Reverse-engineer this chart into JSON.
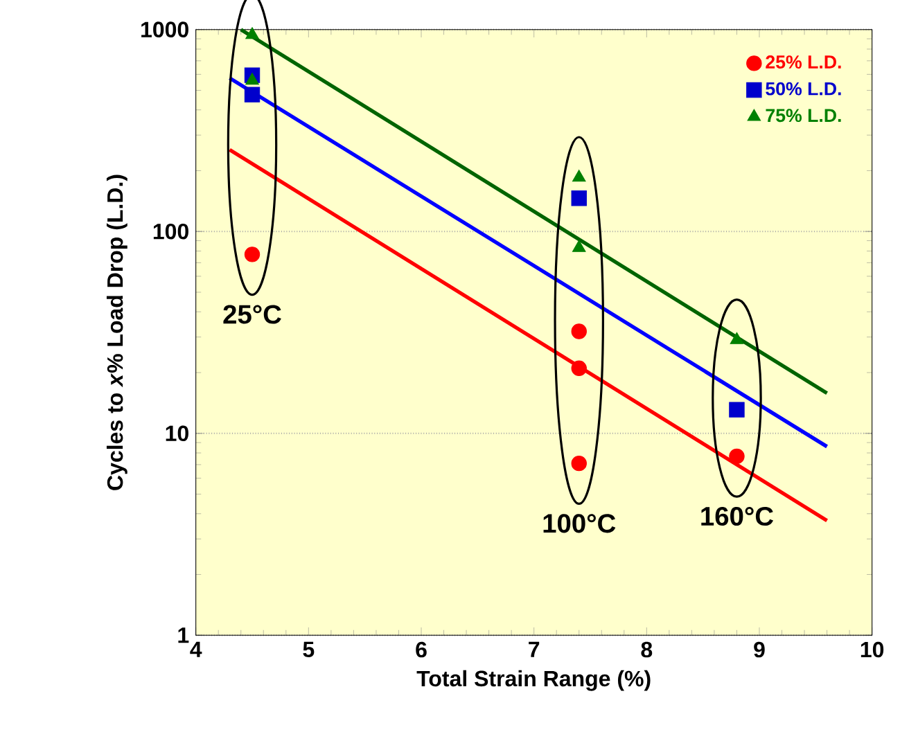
{
  "chart_data": {
    "type": "scatter",
    "xlabel": "Total Strain Range  (%)",
    "ylabel": "Cycles to *x*% Load Drop (L.D.)",
    "log": "y",
    "grid": "y",
    "legend": "top right",
    "xlim": [
      4,
      10
    ],
    "xticks": [
      4,
      5,
      6,
      7,
      8,
      9,
      10
    ],
    "ylim": [
      1,
      1000
    ],
    "yticks": [
      1,
      10,
      100,
      1000
    ],
    "series": [
      {
        "name": "25% L.D.",
        "color": "#ff0000",
        "marker": "circle",
        "x": [
          4.5,
          7.4,
          7.4,
          7.4,
          8.8
        ],
        "values": [
          77,
          32,
          21,
          7.1,
          7.7
        ]
      },
      {
        "name": "50% L.D.",
        "color": "#0000cc",
        "marker": "square",
        "x": [
          4.5,
          4.5,
          7.4,
          8.8
        ],
        "values": [
          594,
          476,
          146,
          13.1
        ]
      },
      {
        "name": "75% L.D.",
        "color": "#008000",
        "marker": "triangle",
        "x": [
          4.5,
          4.5,
          7.4,
          7.4,
          8.8
        ],
        "values": [
          940,
          559,
          185,
          83,
          29
        ]
      },
      {
        "type": "line",
        "color": "#ff0000",
        "marker": "none",
        "x": [
          4.3,
          9.6
        ],
        "values": [
          254,
          3.7
        ]
      },
      {
        "type": "line",
        "color": "#0000ff",
        "marker": "none",
        "x": [
          4.3,
          9.6
        ],
        "values": [
          575,
          8.6
        ]
      },
      {
        "type": "line",
        "color": "#006400",
        "marker": "none",
        "x": [
          4.4,
          9.6
        ],
        "values": [
          1000,
          15.8
        ]
      }
    ],
    "annotations": [
      "25°C",
      "100°C",
      "160°C"
    ]
  }
}
